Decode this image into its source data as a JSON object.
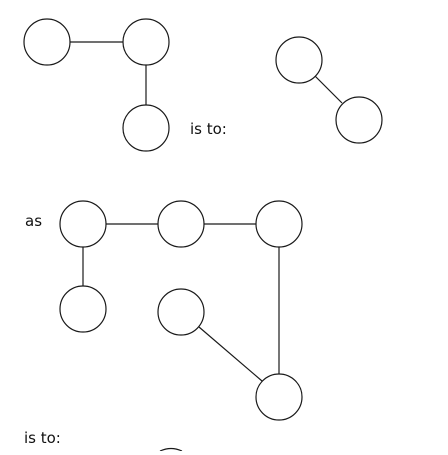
{
  "labels": {
    "is_to_1": "is to:",
    "as": "as",
    "is_to_2": "is to:"
  },
  "colors": {
    "stroke": "#1a1a1a",
    "background": "#ffffff",
    "text": "#111111"
  }
}
